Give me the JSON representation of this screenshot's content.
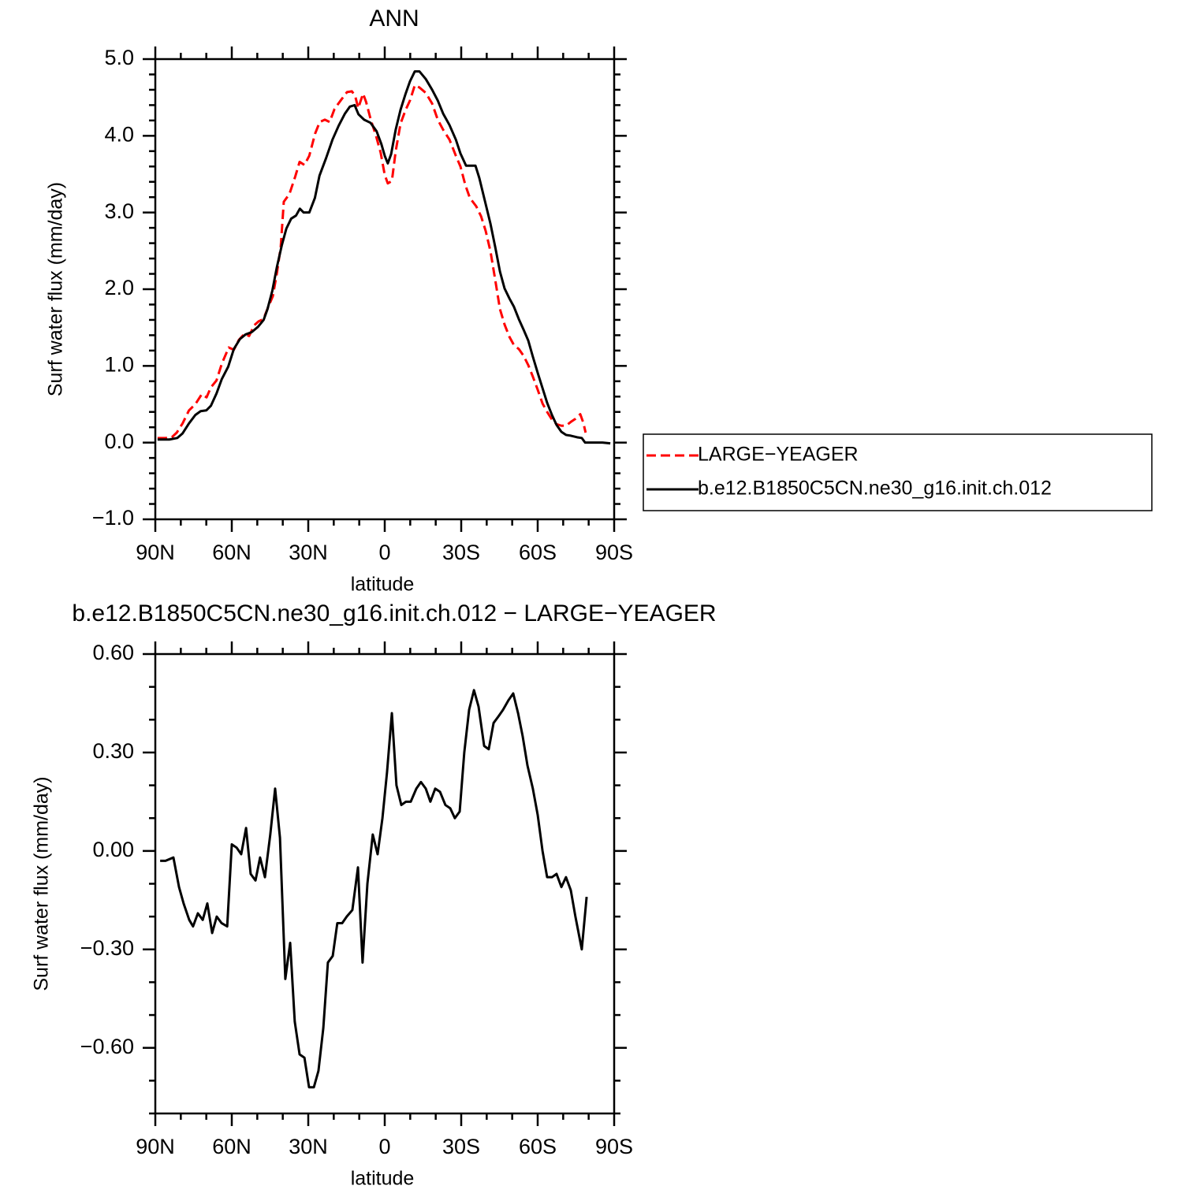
{
  "chart_data": [
    {
      "type": "line",
      "title": "ANN",
      "xlabel": "latitude",
      "ylabel": "Surf water flux (mm/day)",
      "xlim": [
        90,
        -90
      ],
      "xticks": [
        {
          "value": 90,
          "label": "90N"
        },
        {
          "value": 60,
          "label": "60N"
        },
        {
          "value": 30,
          "label": "30N"
        },
        0,
        {
          "value": -30,
          "label": "30S"
        },
        {
          "value": -60,
          "label": "60S"
        },
        {
          "value": -90,
          "label": "90S"
        }
      ],
      "ylim": [
        -1,
        5
      ],
      "yticks": [
        {
          "value": -1,
          "label": "−1.0"
        },
        {
          "value": 0,
          "label": "0.0"
        },
        {
          "value": 1,
          "label": "1.0"
        },
        {
          "value": 2,
          "label": "2.0"
        },
        {
          "value": 3,
          "label": "3.0"
        },
        {
          "value": 4,
          "label": "4.0"
        },
        {
          "value": 5,
          "label": "5.0"
        }
      ],
      "legend": "right",
      "series": [
        {
          "name": "LARGE−YEAGER",
          "color": "#ff0000",
          "style": "dashed",
          "x": [
            89.1,
            86.0,
            83.5,
            81.6,
            79.3,
            76.8,
            74.3,
            71.8,
            69.9,
            68.2,
            66.0,
            63.9,
            61.2,
            59.2,
            57.2,
            55.0,
            53.2,
            51.2,
            49.5,
            47.6,
            45.8,
            43.9,
            42.3,
            40.8,
            39.6,
            37.4,
            35.1,
            33.4,
            31.5,
            29.6,
            27.3,
            25.5,
            23.5,
            21.6,
            19.7,
            17.3,
            14.8,
            12.9,
            11.6,
            10.4,
            8.5,
            7.3,
            5.4,
            3.5,
            1.6,
            0.0,
            -1.2,
            -2.8,
            -4.3,
            -6.2,
            -8.1,
            -9.9,
            -11.8,
            -13.6,
            -16.1,
            -18.6,
            -20.8,
            -22.9,
            -25.4,
            -27.9,
            -29.7,
            -31.6,
            -33.4,
            -35.9,
            -37.8,
            -39.6,
            -41.5,
            -43.4,
            -45.2,
            -47.0,
            -48.9,
            -50.7,
            -52.6,
            -54.5,
            -56.3,
            -58.1,
            -60.0,
            -61.9,
            -63.7,
            -65.6,
            -67.4,
            -69.3,
            -71.1,
            -73.0,
            -74.8,
            -76.7,
            -77.9,
            -78.8
          ],
          "values": [
            0.06,
            0.06,
            0.07,
            0.13,
            0.25,
            0.42,
            0.5,
            0.63,
            0.59,
            0.72,
            0.81,
            1.03,
            1.24,
            1.21,
            1.34,
            1.42,
            1.39,
            1.53,
            1.58,
            1.61,
            1.76,
            1.91,
            2.21,
            2.55,
            3.14,
            3.24,
            3.47,
            3.66,
            3.62,
            3.74,
            4.03,
            4.18,
            4.21,
            4.18,
            4.35,
            4.46,
            4.57,
            4.58,
            4.52,
            4.36,
            4.55,
            4.44,
            4.2,
            4.01,
            3.78,
            3.49,
            3.38,
            3.41,
            3.8,
            4.16,
            4.33,
            4.46,
            4.66,
            4.63,
            4.56,
            4.42,
            4.21,
            4.08,
            3.95,
            3.74,
            3.6,
            3.36,
            3.19,
            3.08,
            2.95,
            2.76,
            2.49,
            2.11,
            1.74,
            1.54,
            1.38,
            1.27,
            1.22,
            1.13,
            1.01,
            0.86,
            0.69,
            0.51,
            0.4,
            0.3,
            0.24,
            0.22,
            0.22,
            0.27,
            0.31,
            0.37,
            0.26,
            0.13
          ]
        },
        {
          "name": "b.e12.B1850C5CN.ne30_g16.init.ch.012",
          "color": "#000000",
          "style": "solid",
          "x": [
            89.1,
            84.5,
            81.4,
            79.3,
            76.8,
            74.3,
            72.2,
            70.0,
            68.2,
            66.0,
            63.9,
            61.4,
            59.2,
            56.8,
            54.6,
            52.2,
            49.7,
            47.5,
            46.0,
            44.1,
            42.3,
            40.4,
            38.6,
            36.7,
            34.8,
            33.3,
            31.8,
            29.6,
            27.4,
            25.6,
            23.0,
            20.5,
            18.1,
            15.6,
            13.7,
            11.8,
            10.3,
            8.1,
            5.6,
            3.2,
            1.3,
            0.0,
            -1.2,
            -2.5,
            -4.3,
            -6.2,
            -8.1,
            -9.9,
            -11.8,
            -13.6,
            -16.1,
            -18.6,
            -20.8,
            -22.9,
            -25.4,
            -27.9,
            -29.7,
            -31.9,
            -34.1,
            -35.6,
            -37.1,
            -39.3,
            -41.5,
            -43.4,
            -45.2,
            -47.0,
            -48.9,
            -50.7,
            -52.6,
            -54.5,
            -56.3,
            -58.1,
            -60.0,
            -61.9,
            -63.7,
            -65.6,
            -67.4,
            -69.3,
            -71.1,
            -73.0,
            -75.4,
            -77.3,
            -78.6,
            -81.0,
            -85.4,
            -88.5
          ],
          "values": [
            0.04,
            0.04,
            0.06,
            0.12,
            0.25,
            0.36,
            0.41,
            0.42,
            0.48,
            0.64,
            0.83,
            0.99,
            1.22,
            1.35,
            1.41,
            1.44,
            1.51,
            1.6,
            1.74,
            1.98,
            2.29,
            2.57,
            2.79,
            2.92,
            2.96,
            3.05,
            3.0,
            3.0,
            3.19,
            3.48,
            3.71,
            3.95,
            4.13,
            4.29,
            4.38,
            4.4,
            4.28,
            4.21,
            4.17,
            4.06,
            3.89,
            3.74,
            3.64,
            3.76,
            4.08,
            4.34,
            4.54,
            4.71,
            4.84,
            4.84,
            4.74,
            4.6,
            4.46,
            4.29,
            4.14,
            3.95,
            3.77,
            3.61,
            3.61,
            3.61,
            3.45,
            3.15,
            2.85,
            2.54,
            2.23,
            2.01,
            1.88,
            1.77,
            1.61,
            1.47,
            1.33,
            1.12,
            0.91,
            0.71,
            0.52,
            0.36,
            0.23,
            0.14,
            0.1,
            0.09,
            0.07,
            0.06,
            0.0,
            0.0,
            0.0,
            -0.01
          ]
        }
      ]
    },
    {
      "type": "line",
      "title": "b.e12.B1850C5CN.ne30_g16.init.ch.012 − LARGE−YEAGER",
      "xlabel": "latitude",
      "ylabel": "Surf water flux (mm/day)",
      "xlim": [
        90,
        -90
      ],
      "xticks": [
        {
          "value": 90,
          "label": "90N"
        },
        {
          "value": 60,
          "label": "60N"
        },
        {
          "value": 30,
          "label": "30N"
        },
        0,
        {
          "value": -30,
          "label": "30S"
        },
        {
          "value": -60,
          "label": "60S"
        },
        {
          "value": -90,
          "label": "90S"
        }
      ],
      "ylim": [
        -0.8,
        0.6
      ],
      "yticks": [
        {
          "value": -0.6,
          "label": "−0.60"
        },
        {
          "value": -0.3,
          "label": "−0.30"
        },
        {
          "value": 0,
          "label": "0.00"
        },
        {
          "value": 0.3,
          "label": "0.30"
        },
        {
          "value": 0.6,
          "label": "0.60"
        }
      ],
      "color": "#000000",
      "style": "solid",
      "x": [
        88.1,
        86.0,
        82.9,
        80.7,
        78.9,
        76.7,
        75.2,
        73.3,
        71.4,
        69.6,
        67.7,
        65.9,
        64.0,
        61.8,
        60.0,
        58.1,
        56.3,
        54.4,
        52.6,
        50.7,
        48.9,
        47.0,
        44.9,
        43.0,
        41.1,
        39.0,
        37.1,
        35.3,
        33.4,
        31.5,
        29.7,
        27.8,
        26.0,
        24.1,
        22.3,
        20.4,
        18.6,
        16.7,
        14.9,
        12.7,
        10.5,
        8.7,
        6.8,
        4.7,
        2.8,
        0.9,
        -0.9,
        -2.8,
        -4.6,
        -6.5,
        -8.3,
        -10.2,
        -12.4,
        -14.2,
        -16.1,
        -17.9,
        -19.8,
        -21.7,
        -23.8,
        -25.7,
        -27.5,
        -29.4,
        -31.2,
        -33.1,
        -35.0,
        -36.8,
        -39.0,
        -40.8,
        -42.7,
        -44.6,
        -46.4,
        -48.6,
        -50.4,
        -52.3,
        -54.1,
        -56.0,
        -58.1,
        -60.0,
        -61.9,
        -63.7,
        -65.6,
        -67.4,
        -69.3,
        -71.1,
        -73.0,
        -74.8,
        -77.3,
        -79.2
      ],
      "values": [
        -0.03,
        -0.03,
        -0.02,
        -0.11,
        -0.16,
        -0.21,
        -0.23,
        -0.19,
        -0.21,
        -0.16,
        -0.25,
        -0.2,
        -0.22,
        -0.23,
        0.02,
        0.01,
        -0.01,
        0.07,
        -0.07,
        -0.09,
        -0.02,
        -0.08,
        0.05,
        0.19,
        0.04,
        -0.39,
        -0.28,
        -0.52,
        -0.62,
        -0.63,
        -0.72,
        -0.72,
        -0.67,
        -0.54,
        -0.34,
        -0.32,
        -0.22,
        -0.22,
        -0.2,
        -0.18,
        -0.05,
        -0.34,
        -0.1,
        0.05,
        -0.01,
        0.1,
        0.24,
        0.42,
        0.2,
        0.14,
        0.15,
        0.15,
        0.19,
        0.21,
        0.19,
        0.15,
        0.19,
        0.18,
        0.14,
        0.13,
        0.1,
        0.12,
        0.3,
        0.43,
        0.49,
        0.44,
        0.32,
        0.31,
        0.39,
        0.41,
        0.43,
        0.46,
        0.48,
        0.42,
        0.35,
        0.26,
        0.19,
        0.11,
        0.0,
        -0.08,
        -0.08,
        -0.07,
        -0.11,
        -0.08,
        -0.12,
        -0.2,
        -0.3,
        -0.14
      ]
    }
  ]
}
